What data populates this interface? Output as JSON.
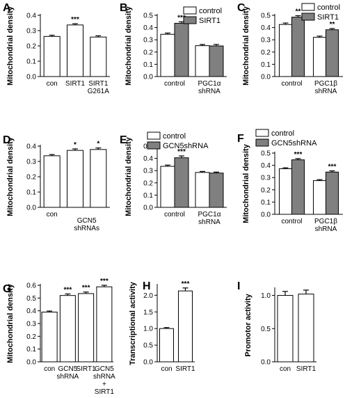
{
  "colors": {
    "control": "#ffffff",
    "treated": "#808080",
    "stroke": "#000000"
  },
  "chart_data": [
    {
      "type": "bar",
      "panel_label": "A",
      "ylabel": "Mitochondrial density",
      "ylim": [
        0,
        0.4
      ],
      "yticks": [
        "0.0",
        "0.1",
        "0.2",
        "0.3",
        "0.4"
      ],
      "categories": [
        [
          "con"
        ],
        [
          "SIRT1"
        ],
        [
          "SIRT1",
          "G261A"
        ]
      ],
      "series": [
        {
          "color_key": "control",
          "values": [
            0.262,
            0.337,
            0.258
          ],
          "errors": [
            0.008,
            0.008,
            0.008
          ],
          "sig": [
            "",
            "***",
            ""
          ]
        }
      ]
    },
    {
      "type": "bar",
      "panel_label": "B",
      "ylabel": "Mitochondrial density",
      "ylim": [
        0,
        0.5
      ],
      "yticks": [
        "0.0",
        "0.1",
        "0.2",
        "0.3",
        "0.4",
        "0.5"
      ],
      "categories": [
        [
          "control"
        ],
        [
          "PGC1α",
          "shRNA"
        ]
      ],
      "legend": [
        "control",
        "SIRT1"
      ],
      "series": [
        {
          "name": "control",
          "color_key": "control",
          "values": [
            0.345,
            0.252
          ],
          "errors": [
            0.01,
            0.01
          ],
          "sig": [
            "",
            ""
          ]
        },
        {
          "name": "SIRT1",
          "color_key": "treated",
          "values": [
            0.435,
            0.25
          ],
          "errors": [
            0.012,
            0.012
          ],
          "sig": [
            "***",
            ""
          ]
        }
      ]
    },
    {
      "type": "bar",
      "panel_label": "C",
      "ylabel": "Mitochondrial density",
      "ylim": [
        0,
        0.5
      ],
      "yticks": [
        "0.0",
        "0.1",
        "0.2",
        "0.3",
        "0.4",
        "0.5"
      ],
      "categories": [
        [
          "control"
        ],
        [
          "PGC1β",
          "shRNA"
        ]
      ],
      "legend": [
        "control",
        "SIRT1"
      ],
      "series": [
        {
          "name": "control",
          "color_key": "control",
          "values": [
            0.425,
            0.32
          ],
          "errors": [
            0.012,
            0.01
          ],
          "sig": [
            "",
            ""
          ]
        },
        {
          "name": "SIRT1",
          "color_key": "treated",
          "values": [
            0.485,
            0.382
          ],
          "errors": [
            0.012,
            0.01
          ],
          "sig": [
            "**",
            "**"
          ]
        }
      ]
    },
    {
      "type": "bar",
      "panel_label": "D",
      "ylabel": "Mitochondrial density",
      "ylim": [
        0,
        0.4
      ],
      "yticks": [
        "0.0",
        "0.1",
        "0.2",
        "0.3",
        "0.4"
      ],
      "categories": [
        [
          "con"
        ],
        [
          ""
        ],
        [
          ""
        ]
      ],
      "group_label": [
        "GCN5",
        "shRNAs"
      ],
      "series": [
        {
          "color_key": "control",
          "values": [
            0.337,
            0.372,
            0.378
          ],
          "errors": [
            0.008,
            0.01,
            0.01
          ],
          "sig": [
            "",
            "*",
            "*"
          ]
        }
      ]
    },
    {
      "type": "bar",
      "panel_label": "E",
      "ylabel": "Mitochondrial density",
      "ylim": [
        0,
        0.5
      ],
      "yticks": [
        "0.0",
        "0.1",
        "0.2",
        "0.3",
        "0.4",
        "0.5"
      ],
      "categories": [
        [
          "control"
        ],
        [
          "PGC1α",
          "shRNA"
        ]
      ],
      "legend": [
        "control",
        "GCN5shRNA"
      ],
      "series": [
        {
          "name": "control",
          "color_key": "control",
          "values": [
            0.335,
            0.285
          ],
          "errors": [
            0.01,
            0.008
          ],
          "sig": [
            "",
            ""
          ]
        },
        {
          "name": "GCN5shRNA",
          "color_key": "treated",
          "values": [
            0.405,
            0.28
          ],
          "errors": [
            0.015,
            0.008
          ],
          "sig": [
            "***",
            ""
          ]
        }
      ]
    },
    {
      "type": "bar",
      "panel_label": "F",
      "ylabel": "Mitochondrial density",
      "ylim": [
        0,
        0.5
      ],
      "yticks": [
        "0.0",
        "0.1",
        "0.2",
        "0.3",
        "0.4",
        "0.5"
      ],
      "categories": [
        [
          "control"
        ],
        [
          "PGC1β",
          "shRNA"
        ]
      ],
      "legend": [
        "control",
        "GCN5shRNA"
      ],
      "series": [
        {
          "name": "control",
          "color_key": "control",
          "values": [
            0.372,
            0.275
          ],
          "errors": [
            0.008,
            0.008
          ],
          "sig": [
            "",
            ""
          ]
        },
        {
          "name": "GCN5shRNA",
          "color_key": "treated",
          "values": [
            0.445,
            0.345
          ],
          "errors": [
            0.01,
            0.01
          ],
          "sig": [
            "***",
            "***"
          ]
        }
      ]
    },
    {
      "type": "bar",
      "panel_label": "G",
      "ylabel": "Mitochondrial density",
      "ylim": [
        0,
        0.6
      ],
      "yticks": [
        "0.0",
        "0.1",
        "0.2",
        "0.3",
        "0.4",
        "0.5",
        "0.6"
      ],
      "categories": [
        [
          "con"
        ],
        [
          "GCN5",
          "shRNA"
        ],
        [
          "SIRT1"
        ],
        [
          "GCN5",
          "shRNA",
          "+",
          "SIRT1"
        ]
      ],
      "series": [
        {
          "color_key": "control",
          "values": [
            0.39,
            0.52,
            0.535,
            0.588
          ],
          "errors": [
            0.008,
            0.012,
            0.012,
            0.012
          ],
          "sig": [
            "",
            "***",
            "***",
            "***"
          ]
        }
      ]
    },
    {
      "type": "bar",
      "panel_label": "H",
      "ylabel": "Transcriptional activity",
      "ylim": [
        0,
        2.3
      ],
      "yticks": [
        "0.0",
        "0.5",
        "1.0",
        "1.5",
        "2.0"
      ],
      "categories": [
        [
          "con"
        ],
        [
          "SIRT1"
        ]
      ],
      "series": [
        {
          "color_key": "control",
          "values": [
            1.0,
            2.13
          ],
          "errors": [
            0.03,
            0.09
          ],
          "sig": [
            "",
            "***"
          ]
        }
      ]
    },
    {
      "type": "bar",
      "panel_label": "I",
      "ylabel": "Promotor activity",
      "ylim": [
        0,
        1.1
      ],
      "yticks": [
        "0.0",
        "0.5",
        "1.0"
      ],
      "categories": [
        [
          "con"
        ],
        [
          "SIRT1"
        ]
      ],
      "series": [
        {
          "color_key": "control",
          "values": [
            1.0,
            1.02
          ],
          "errors": [
            0.06,
            0.06
          ],
          "sig": [
            "",
            ""
          ]
        }
      ]
    }
  ]
}
